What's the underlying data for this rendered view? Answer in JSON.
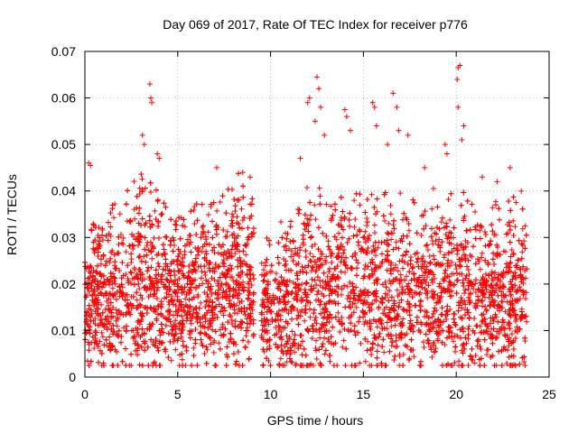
{
  "chart_data": {
    "type": "scatter",
    "title": "Day 069 of 2017, Rate Of TEC Index for receiver p776",
    "xlabel": "GPS time / hours",
    "ylabel": "ROTI / TECUs",
    "xlim": [
      0,
      25
    ],
    "ylim": [
      0,
      0.07
    ],
    "x_ticks": [
      "0",
      "5",
      "10",
      "15",
      "20",
      "25"
    ],
    "y_ticks": [
      "0",
      "0.01",
      "0.02",
      "0.03",
      "0.04",
      "0.05",
      "0.06",
      "0.07"
    ],
    "grid": true,
    "marker": "+",
    "color": "#ff0000",
    "data_gap_hours": [
      9.1,
      9.5
    ],
    "density_profile": [
      {
        "x": 0.0,
        "y_low": 0.007,
        "y_high": 0.03
      },
      {
        "x": 1.0,
        "y_low": 0.005,
        "y_high": 0.034
      },
      {
        "x": 2.0,
        "y_low": 0.006,
        "y_high": 0.037
      },
      {
        "x": 3.0,
        "y_low": 0.006,
        "y_high": 0.043
      },
      {
        "x": 4.0,
        "y_low": 0.006,
        "y_high": 0.038
      },
      {
        "x": 5.0,
        "y_low": 0.006,
        "y_high": 0.034
      },
      {
        "x": 6.0,
        "y_low": 0.007,
        "y_high": 0.036
      },
      {
        "x": 7.0,
        "y_low": 0.006,
        "y_high": 0.038
      },
      {
        "x": 8.0,
        "y_low": 0.007,
        "y_high": 0.04
      },
      {
        "x": 9.0,
        "y_low": 0.008,
        "y_high": 0.04
      },
      {
        "x": 9.6,
        "y_low": 0.005,
        "y_high": 0.028
      },
      {
        "x": 11.0,
        "y_low": 0.005,
        "y_high": 0.034
      },
      {
        "x": 12.0,
        "y_low": 0.005,
        "y_high": 0.04
      },
      {
        "x": 13.0,
        "y_low": 0.006,
        "y_high": 0.036
      },
      {
        "x": 14.0,
        "y_low": 0.006,
        "y_high": 0.04
      },
      {
        "x": 15.0,
        "y_low": 0.006,
        "y_high": 0.038
      },
      {
        "x": 16.0,
        "y_low": 0.006,
        "y_high": 0.04
      },
      {
        "x": 17.0,
        "y_low": 0.006,
        "y_high": 0.038
      },
      {
        "x": 18.0,
        "y_low": 0.007,
        "y_high": 0.036
      },
      {
        "x": 19.0,
        "y_low": 0.006,
        "y_high": 0.036
      },
      {
        "x": 20.0,
        "y_low": 0.006,
        "y_high": 0.04
      },
      {
        "x": 21.0,
        "y_low": 0.006,
        "y_high": 0.036
      },
      {
        "x": 22.0,
        "y_low": 0.005,
        "y_high": 0.036
      },
      {
        "x": 23.0,
        "y_low": 0.005,
        "y_high": 0.038
      },
      {
        "x": 23.8,
        "y_low": 0.006,
        "y_high": 0.034
      }
    ],
    "notable_points": [
      {
        "x": 0.2,
        "y": 0.046
      },
      {
        "x": 0.3,
        "y": 0.0455
      },
      {
        "x": 3.5,
        "y": 0.063
      },
      {
        "x": 3.55,
        "y": 0.06
      },
      {
        "x": 3.6,
        "y": 0.059
      },
      {
        "x": 3.1,
        "y": 0.052
      },
      {
        "x": 3.2,
        "y": 0.05
      },
      {
        "x": 3.9,
        "y": 0.048
      },
      {
        "x": 4.0,
        "y": 0.047
      },
      {
        "x": 7.1,
        "y": 0.045
      },
      {
        "x": 8.5,
        "y": 0.044
      },
      {
        "x": 8.9,
        "y": 0.043
      },
      {
        "x": 11.6,
        "y": 0.047
      },
      {
        "x": 12.0,
        "y": 0.059
      },
      {
        "x": 12.1,
        "y": 0.06
      },
      {
        "x": 12.5,
        "y": 0.0645
      },
      {
        "x": 12.6,
        "y": 0.062
      },
      {
        "x": 12.7,
        "y": 0.058
      },
      {
        "x": 12.4,
        "y": 0.055
      },
      {
        "x": 12.9,
        "y": 0.052
      },
      {
        "x": 14.0,
        "y": 0.0575
      },
      {
        "x": 14.1,
        "y": 0.056
      },
      {
        "x": 14.3,
        "y": 0.053
      },
      {
        "x": 15.5,
        "y": 0.059
      },
      {
        "x": 15.6,
        "y": 0.058
      },
      {
        "x": 15.7,
        "y": 0.054
      },
      {
        "x": 16.6,
        "y": 0.061
      },
      {
        "x": 16.8,
        "y": 0.058
      },
      {
        "x": 16.3,
        "y": 0.05
      },
      {
        "x": 16.9,
        "y": 0.053
      },
      {
        "x": 17.4,
        "y": 0.052
      },
      {
        "x": 18.3,
        "y": 0.045
      },
      {
        "x": 19.4,
        "y": 0.05
      },
      {
        "x": 19.5,
        "y": 0.048
      },
      {
        "x": 20.1,
        "y": 0.0665
      },
      {
        "x": 20.2,
        "y": 0.067
      },
      {
        "x": 20.05,
        "y": 0.064
      },
      {
        "x": 20.1,
        "y": 0.058
      },
      {
        "x": 20.4,
        "y": 0.054
      },
      {
        "x": 20.3,
        "y": 0.051
      },
      {
        "x": 21.4,
        "y": 0.043
      },
      {
        "x": 22.2,
        "y": 0.042
      },
      {
        "x": 22.9,
        "y": 0.045
      },
      {
        "x": 23.5,
        "y": 0.04
      },
      {
        "x": 3.7,
        "y": 0.003
      },
      {
        "x": 1.0,
        "y": 0.003
      },
      {
        "x": 14.8,
        "y": 0.003
      },
      {
        "x": 21.0,
        "y": 0.003
      },
      {
        "x": 9.9,
        "y": 0.0035
      }
    ]
  }
}
